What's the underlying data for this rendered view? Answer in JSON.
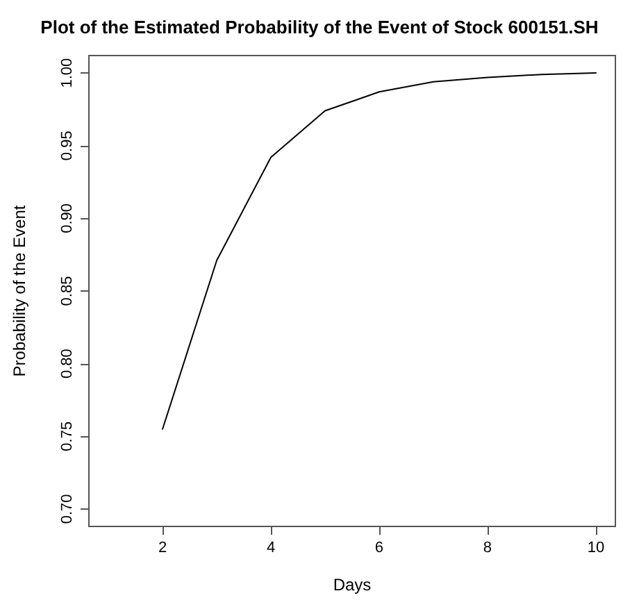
{
  "chart_data": {
    "type": "line",
    "title": "Plot of the Estimated Probability of the Event of Stock 600151.SH",
    "xlabel": "Days",
    "ylabel": "Probability of the Event",
    "x": [
      2,
      3,
      4,
      5,
      6,
      7,
      8,
      9,
      10
    ],
    "series": [
      {
        "color": "#000000",
        "values": [
          0.755,
          0.871,
          0.942,
          0.974,
          0.987,
          0.994,
          0.997,
          0.999,
          1.0
        ]
      }
    ],
    "xlim": [
      0.64,
      10.36
    ],
    "xticks": [
      2,
      4,
      6,
      8,
      10
    ],
    "ylim": [
      0.688,
      1.012
    ],
    "yticks": [
      {
        "value": 0.7,
        "label": "0.70"
      },
      {
        "value": 0.75,
        "label": "0.75"
      },
      {
        "value": 0.8,
        "label": "0.80"
      },
      {
        "value": 0.85,
        "label": "0.85"
      },
      {
        "value": 0.9,
        "label": "0.90"
      },
      {
        "value": 0.95,
        "label": "0.95"
      },
      {
        "value": 1.0,
        "label": "1.00"
      }
    ],
    "grid": false,
    "marker": "none",
    "line_style": "solid"
  }
}
